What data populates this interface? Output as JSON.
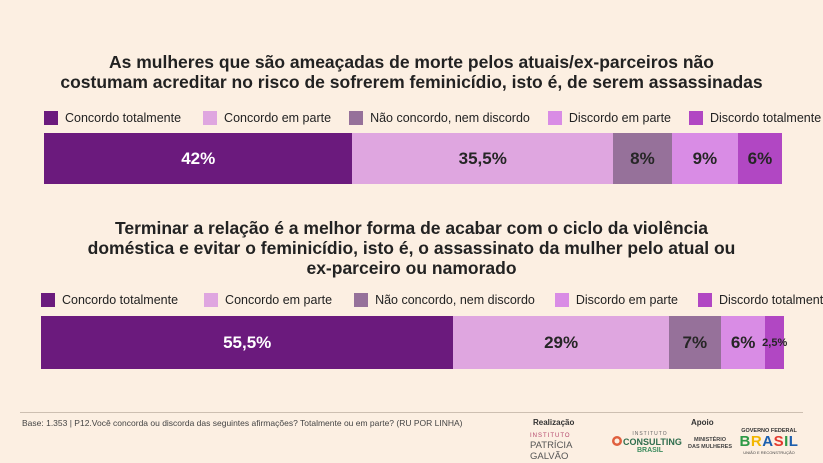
{
  "colors": {
    "concordo_totalmente": "#6b1a7d",
    "concordo_em_parte": "#dfa6e0",
    "nao_concordo_nem_discordo": "#96719a",
    "discordo_em_parte": "#d98ce5",
    "discordo_totalmente": "#b147c3"
  },
  "chart_data": [
    {
      "type": "bar",
      "orientation": "horizontal-stacked-100",
      "title": "As mulheres que são ameaçadas de morte pelos atuais/ex-parceiros não costumam acreditar no risco de sofrerem feminicídio, isto é, de serem assassinadas",
      "title_lines": [
        "As mulheres que são ameaçadas de morte pelos atuais/ex-parceiros não",
        "costumam acreditar no risco de sofrerem feminicídio, isto é, de serem assassinadas"
      ],
      "legend_position": "top",
      "series": [
        {
          "name": "Concordo totalmente",
          "value": 42,
          "label": "42%"
        },
        {
          "name": "Concordo em parte",
          "value": 35.5,
          "label": "35,5%"
        },
        {
          "name": "Não concordo, nem discordo",
          "value": 8,
          "label": "8%"
        },
        {
          "name": "Discordo em parte",
          "value": 9,
          "label": "9%"
        },
        {
          "name": "Discordo totalmente",
          "value": 6,
          "label": "6%"
        }
      ]
    },
    {
      "type": "bar",
      "orientation": "horizontal-stacked-100",
      "title": "Terminar a relação é a melhor forma de acabar com o ciclo da violência doméstica e evitar o feminicídio, isto é, o assassinato da mulher pelo atual ou ex-parceiro ou namorado",
      "title_lines": [
        "Terminar a relação é a melhor forma de acabar com o ciclo da violência",
        "doméstica e evitar o feminicídio, isto é, o assassinato da mulher pelo atual ou",
        "ex-parceiro ou namorado"
      ],
      "legend_position": "top",
      "series": [
        {
          "name": "Concordo totalmente",
          "value": 55.5,
          "label": "55,5%"
        },
        {
          "name": "Concordo em parte",
          "value": 29,
          "label": "29%"
        },
        {
          "name": "Não concordo, nem discordo",
          "value": 7,
          "label": "7%"
        },
        {
          "name": "Discordo em parte",
          "value": 6,
          "label": "6%"
        },
        {
          "name": "Discordo totalmente",
          "value": 2.5,
          "label": "2,5%"
        }
      ]
    }
  ],
  "footer": {
    "note": "Base: 1.353 | P12.Você concorda ou discorda das seguintes afirmações? Totalmente ou em parte? (RU POR LINHA)",
    "realizacao_label": "Realização",
    "apoio_label": "Apoio",
    "logos": {
      "patricia_galvao_small": "INSTITUTO",
      "patricia_galvao": "PATRÍCIA GALVÃO",
      "consulting_small": "INSTITUTO",
      "consulting_main": "CONSULTING",
      "consulting_sub": "BRASIL",
      "ministerio": "MINISTÉRIO DAS MULHERES",
      "governo": "GOVERNO FEDERAL",
      "brasil": "BRASIL",
      "brasil_sub": "UNIÃO E RECONSTRUÇÃO"
    }
  }
}
